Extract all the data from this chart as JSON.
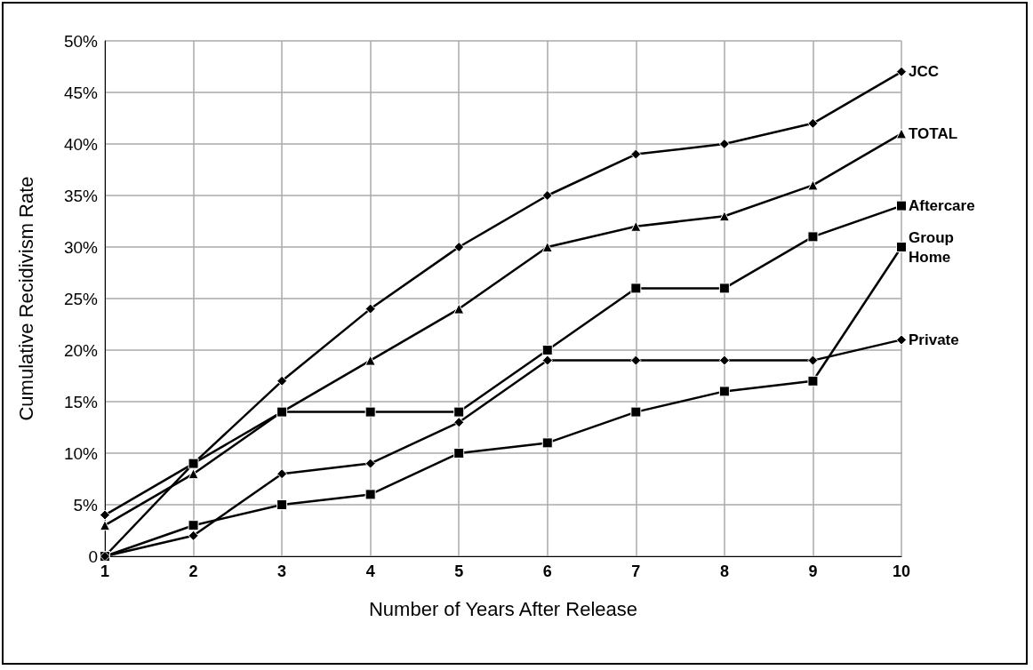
{
  "chart_data": {
    "type": "line",
    "xlabel": "Number of Years After Release",
    "ylabel": "Cumulative Recidivism Rate",
    "x": [
      1,
      2,
      3,
      4,
      5,
      6,
      7,
      8,
      9,
      10
    ],
    "xlim": [
      1,
      10
    ],
    "xticks": [
      1,
      2,
      3,
      4,
      5,
      6,
      7,
      8,
      9,
      10
    ],
    "ylim": [
      0,
      50
    ],
    "yticks": [
      {
        "value": 0,
        "label": "0"
      },
      {
        "value": 5,
        "label": "5%"
      },
      {
        "value": 10,
        "label": "10%"
      },
      {
        "value": 15,
        "label": "15%"
      },
      {
        "value": 20,
        "label": "20%"
      },
      {
        "value": 25,
        "label": "25%"
      },
      {
        "value": 30,
        "label": "30%"
      },
      {
        "value": 35,
        "label": "35%"
      },
      {
        "value": 40,
        "label": "40%"
      },
      {
        "value": 45,
        "label": "45%"
      },
      {
        "value": 50,
        "label": "50%"
      }
    ],
    "grid": true,
    "legend": false,
    "line_style": "solid",
    "series": [
      {
        "name": "JCC",
        "color": "#000000",
        "marker": "diamond",
        "values": [
          4,
          9,
          17,
          24,
          30,
          35,
          39,
          40,
          42,
          47
        ]
      },
      {
        "name": "TOTAL",
        "color": "#000000",
        "marker": "triangle",
        "values": [
          3,
          8,
          14,
          19,
          24,
          30,
          32,
          33,
          36,
          41
        ]
      },
      {
        "name": "Aftercare",
        "color": "#000000",
        "marker": "square",
        "values": [
          0,
          9,
          14,
          14,
          14,
          20,
          26,
          26,
          31,
          34
        ]
      },
      {
        "name": "Group Home",
        "color": "#000000",
        "marker": "square",
        "values": [
          0,
          3,
          5,
          6,
          10,
          11,
          14,
          16,
          17,
          30
        ]
      },
      {
        "name": "Private",
        "color": "#000000",
        "marker": "diamond",
        "values": [
          0,
          2,
          8,
          9,
          13,
          19,
          19,
          19,
          19,
          21
        ]
      }
    ]
  }
}
